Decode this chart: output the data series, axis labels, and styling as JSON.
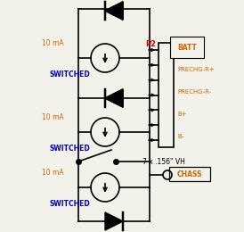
{
  "background_color": "#f2f2ea",
  "line_color": "#000000",
  "text_color_orange": "#cc6600",
  "text_color_blue": "#0000bb",
  "text_color_red": "#cc0000",
  "connector_labels": [
    "BATT",
    "PRECHG-R+",
    "PRECHG-R-",
    "B+",
    "B-"
  ],
  "p2_label": "P2",
  "p2_color": "#cc0000",
  "chass_label": "CHASS",
  "vh_label": "7 x .156\" VH",
  "vh_color": "#000000",
  "switched_label": "SWITCHED",
  "current_label": "10 mA",
  "lw": 1.2
}
